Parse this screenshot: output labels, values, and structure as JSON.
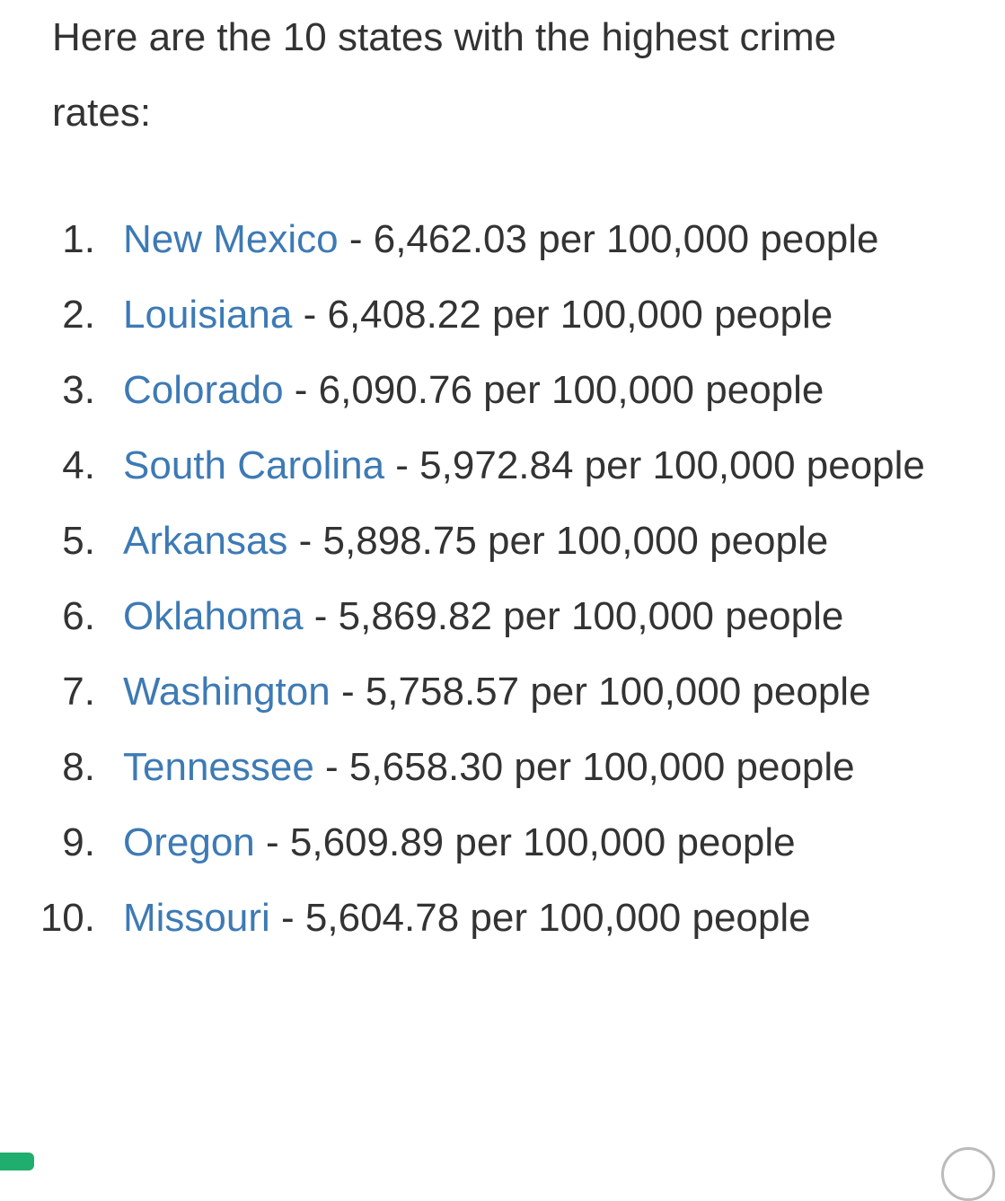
{
  "intro": "Here are the 10 states with the highest crime rates:",
  "items": [
    {
      "num": "1.",
      "state": "New Mexico",
      "rate": " - 6,462.03 per 100,000 people"
    },
    {
      "num": "2.",
      "state": "Louisiana",
      "rate": " - 6,408.22 per 100,000 people"
    },
    {
      "num": "3.",
      "state": "Colorado",
      "rate": " - 6,090.76 per 100,000 people"
    },
    {
      "num": "4.",
      "state": "South Carolina",
      "rate": " - 5,972.84 per 100,000 people"
    },
    {
      "num": "5.",
      "state": "Arkansas",
      "rate": " - 5,898.75 per 100,000 people"
    },
    {
      "num": "6.",
      "state": "Oklahoma",
      "rate": " - 5,869.82 per 100,000 people"
    },
    {
      "num": "7.",
      "state": "Washington",
      "rate": " - 5,758.57 per 100,000 people"
    },
    {
      "num": "8.",
      "state": "Tennessee",
      "rate": " - 5,658.30 per 100,000 people"
    },
    {
      "num": "9.",
      "state": "Oregon",
      "rate": " - 5,609.89 per 100,000 people"
    },
    {
      "num": "10.",
      "state": "Missouri",
      "rate": " - 5,604.78 per 100,000 people"
    }
  ],
  "colors": {
    "text": "#333333",
    "link": "#3d7ab5"
  }
}
